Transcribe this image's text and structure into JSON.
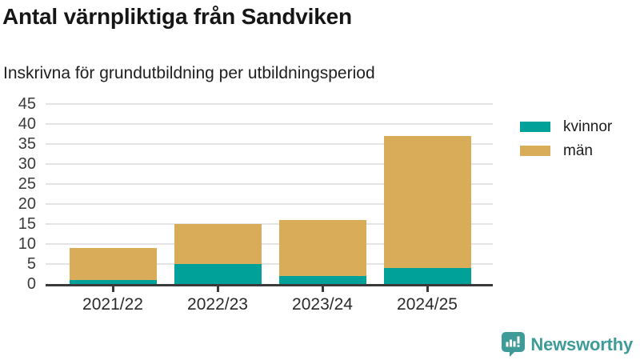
{
  "header": {
    "title": "Antal värnpliktiga från Sandviken",
    "subtitle": "Inskrivna för grundutbildning per utbildningsperiod"
  },
  "chart_data": {
    "type": "bar",
    "stacked": true,
    "title": "Antal värnpliktiga från Sandviken",
    "subtitle": "Inskrivna för grundutbildning per utbildningsperiod",
    "categories": [
      "2021/22",
      "2022/23",
      "2023/24",
      "2024/25"
    ],
    "series": [
      {
        "name": "kvinnor",
        "color": "#00A199",
        "values": [
          1,
          5,
          2,
          4
        ]
      },
      {
        "name": "män",
        "color": "#D9AC59",
        "values": [
          8,
          10,
          14,
          33
        ]
      }
    ],
    "stack_totals": [
      9,
      15,
      16,
      37
    ],
    "xlabel": "",
    "ylabel": "",
    "ylim": [
      0,
      45
    ],
    "yticks": [
      0,
      5,
      10,
      15,
      20,
      25,
      30,
      35,
      40,
      45
    ],
    "grid": true,
    "legend_position": "top-right"
  },
  "branding": {
    "name": "Newsworthy",
    "color": "#3E9B97"
  },
  "style": {
    "grid_color": "#E4E4E4",
    "axis_color": "#3A3A3A",
    "kvinnor_color": "#00A199",
    "man_color": "#D9AC59",
    "text_color": "#1C1C1C"
  }
}
